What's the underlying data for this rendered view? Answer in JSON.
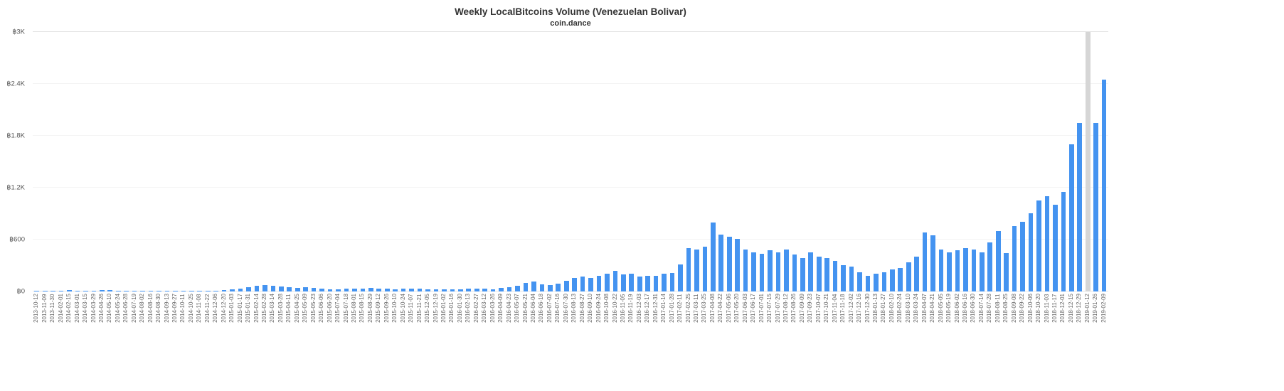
{
  "chart_data": {
    "type": "bar",
    "title": "Weekly LocalBitcoins Volume (Venezuelan Bolivar)",
    "subtitle": "coin.dance",
    "xlabel": "",
    "ylabel": "",
    "ylim": [
      0,
      3000
    ],
    "y_ticks": [
      "฿0",
      "฿600",
      "฿1.2K",
      "฿1.8K",
      "฿2.4K",
      "฿3K"
    ],
    "y_tick_values": [
      0,
      600,
      1200,
      1800,
      2400,
      3000
    ],
    "grid": "horizontal-faint",
    "legend": "none",
    "bar_color": "#4493f0",
    "highlight_color": "#d6d6d6",
    "highlight_category": "2019-01-12",
    "categories": [
      "2013-10-12",
      "2013-11-09",
      "2013-11-30",
      "2014-02-01",
      "2014-02-15",
      "2014-03-01",
      "2014-03-15",
      "2014-03-29",
      "2014-04-26",
      "2014-05-10",
      "2014-05-24",
      "2014-06-28",
      "2014-07-19",
      "2014-08-02",
      "2014-08-16",
      "2014-08-30",
      "2014-09-13",
      "2014-09-27",
      "2014-10-11",
      "2014-10-25",
      "2014-11-08",
      "2014-11-22",
      "2014-12-06",
      "2014-12-20",
      "2015-01-03",
      "2015-01-17",
      "2015-01-31",
      "2015-02-14",
      "2015-02-28",
      "2015-03-14",
      "2015-03-28",
      "2015-04-11",
      "2015-04-25",
      "2015-05-09",
      "2015-05-23",
      "2015-06-06",
      "2015-06-20",
      "2015-07-04",
      "2015-07-18",
      "2015-08-01",
      "2015-08-15",
      "2015-08-29",
      "2015-09-12",
      "2015-09-26",
      "2015-10-10",
      "2015-10-24",
      "2015-11-07",
      "2015-11-21",
      "2015-12-05",
      "2015-12-19",
      "2016-01-02",
      "2016-01-16",
      "2016-01-30",
      "2016-02-13",
      "2016-02-27",
      "2016-03-12",
      "2016-03-26",
      "2016-04-09",
      "2016-04-23",
      "2016-05-07",
      "2016-05-21",
      "2016-06-04",
      "2016-06-18",
      "2016-07-02",
      "2016-07-16",
      "2016-07-30",
      "2016-08-13",
      "2016-08-27",
      "2016-09-10",
      "2016-09-24",
      "2016-10-08",
      "2016-10-22",
      "2016-11-05",
      "2016-11-19",
      "2016-12-03",
      "2016-12-17",
      "2016-12-31",
      "2017-01-14",
      "2017-01-28",
      "2017-02-11",
      "2017-02-25",
      "2017-03-11",
      "2017-03-25",
      "2017-04-08",
      "2017-04-22",
      "2017-05-06",
      "2017-05-20",
      "2017-06-03",
      "2017-06-17",
      "2017-07-01",
      "2017-07-15",
      "2017-07-29",
      "2017-08-12",
      "2017-08-26",
      "2017-09-09",
      "2017-09-23",
      "2017-10-07",
      "2017-10-21",
      "2017-11-04",
      "2017-11-18",
      "2017-12-02",
      "2017-12-16",
      "2017-12-30",
      "2018-01-13",
      "2018-01-27",
      "2018-02-10",
      "2018-02-24",
      "2018-03-10",
      "2018-03-24",
      "2018-04-07",
      "2018-04-21",
      "2018-05-05",
      "2018-05-19",
      "2018-06-02",
      "2018-06-16",
      "2018-06-30",
      "2018-07-14",
      "2018-07-28",
      "2018-08-11",
      "2018-08-25",
      "2018-09-08",
      "2018-09-22",
      "2018-10-06",
      "2018-10-20",
      "2018-11-03",
      "2018-11-17",
      "2018-12-01",
      "2018-12-15",
      "2018-12-29",
      "2019-01-12",
      "2019-01-26",
      "2019-02-09"
    ],
    "values": [
      2,
      3,
      2,
      6,
      14,
      5,
      4,
      3,
      18,
      15,
      5,
      3,
      3,
      3,
      2,
      2,
      3,
      2,
      2,
      3,
      4,
      5,
      8,
      14,
      22,
      30,
      48,
      62,
      70,
      64,
      55,
      46,
      42,
      46,
      40,
      32,
      28,
      26,
      36,
      30,
      34,
      40,
      36,
      30,
      28,
      30,
      32,
      30,
      28,
      26,
      24,
      26,
      28,
      32,
      36,
      30,
      28,
      42,
      48,
      62,
      95,
      112,
      82,
      72,
      92,
      125,
      155,
      175,
      160,
      185,
      205,
      235,
      195,
      205,
      175,
      180,
      185,
      205,
      215,
      310,
      505,
      485,
      515,
      800,
      655,
      635,
      605,
      485,
      455,
      435,
      475,
      455,
      485,
      425,
      385,
      455,
      405,
      385,
      350,
      305,
      285,
      225,
      185,
      205,
      225,
      255,
      275,
      335,
      405,
      680,
      650,
      485,
      455,
      475,
      505,
      485,
      455,
      565,
      700,
      445,
      755,
      805,
      905,
      1050,
      1100,
      1000,
      1150,
      1700,
      1950,
      3000,
      1950,
      2450
    ]
  }
}
